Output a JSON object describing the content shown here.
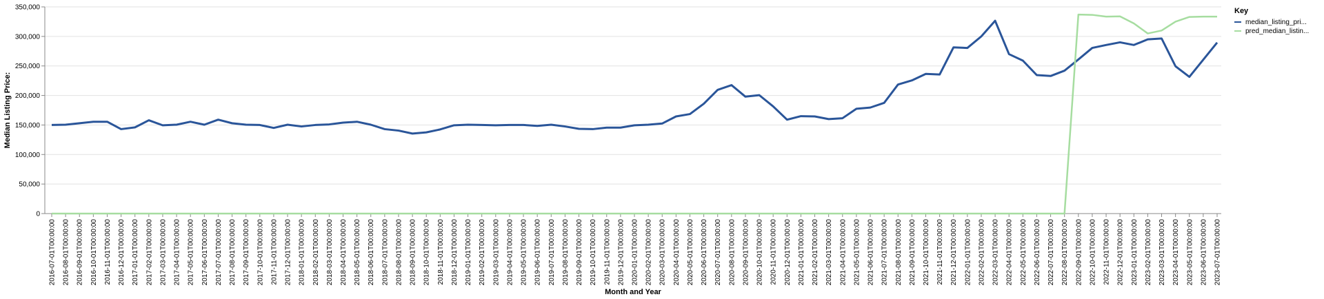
{
  "chart_data": {
    "type": "line",
    "xlabel": "Month and Year",
    "ylabel": "Median Listing Price:",
    "ylim": [
      0,
      350000
    ],
    "yticks": [
      "0",
      "50,000",
      "100,000",
      "150,000",
      "200,000",
      "250,000",
      "300,000",
      "350,000"
    ],
    "grid": true,
    "legend": {
      "title": "Key",
      "placement": "top-right",
      "items": [
        "median_listing_pri...",
        "pred_median_listin..."
      ]
    },
    "x": [
      "2016-07-01T00:00:00",
      "2016-08-01T00:00:00",
      "2016-09-01T00:00:00",
      "2016-10-01T00:00:00",
      "2016-11-01T00:00:00",
      "2016-12-01T00:00:00",
      "2017-01-01T00:00:00",
      "2017-02-01T00:00:00",
      "2017-03-01T00:00:00",
      "2017-04-01T00:00:00",
      "2017-05-01T00:00:00",
      "2017-06-01T00:00:00",
      "2017-07-01T00:00:00",
      "2017-08-01T00:00:00",
      "2017-09-01T00:00:00",
      "2017-10-01T00:00:00",
      "2017-11-01T00:00:00",
      "2017-12-01T00:00:00",
      "2018-01-01T00:00:00",
      "2018-02-01T00:00:00",
      "2018-03-01T00:00:00",
      "2018-04-01T00:00:00",
      "2018-05-01T00:00:00",
      "2018-06-01T00:00:00",
      "2018-07-01T00:00:00",
      "2018-08-01T00:00:00",
      "2018-09-01T00:00:00",
      "2018-10-01T00:00:00",
      "2018-11-01T00:00:00",
      "2018-12-01T00:00:00",
      "2019-01-01T00:00:00",
      "2019-02-01T00:00:00",
      "2019-03-01T00:00:00",
      "2019-04-01T00:00:00",
      "2019-05-01T00:00:00",
      "2019-06-01T00:00:00",
      "2019-07-01T00:00:00",
      "2019-08-01T00:00:00",
      "2019-09-01T00:00:00",
      "2019-10-01T00:00:00",
      "2019-11-01T00:00:00",
      "2019-12-01T00:00:00",
      "2020-01-01T00:00:00",
      "2020-02-01T00:00:00",
      "2020-03-01T00:00:00",
      "2020-04-01T00:00:00",
      "2020-05-01T00:00:00",
      "2020-06-01T00:00:00",
      "2020-07-01T00:00:00",
      "2020-08-01T00:00:00",
      "2020-09-01T00:00:00",
      "2020-10-01T00:00:00",
      "2020-11-01T00:00:00",
      "2020-12-01T00:00:00",
      "2021-01-01T00:00:00",
      "2021-02-01T00:00:00",
      "2021-03-01T00:00:00",
      "2021-04-01T00:00:00",
      "2021-05-01T00:00:00",
      "2021-06-01T00:00:00",
      "2021-07-01T00:00:00",
      "2021-08-01T00:00:00",
      "2021-09-01T00:00:00",
      "2021-10-01T00:00:00",
      "2021-11-01T00:00:00",
      "2021-12-01T00:00:00",
      "2022-01-01T00:00:00",
      "2022-02-01T00:00:00",
      "2022-03-01T00:00:00",
      "2022-04-01T00:00:00",
      "2022-05-01T00:00:00",
      "2022-06-01T00:00:00",
      "2022-07-01T00:00:00",
      "2022-08-01T00:00:00",
      "2022-09-01T00:00:00",
      "2022-10-01T00:00:00",
      "2022-11-01T00:00:00",
      "2022-12-01T00:00:00",
      "2023-01-01T00:00:00",
      "2023-02-01T00:00:00",
      "2023-03-01T00:00:00",
      "2023-04-01T00:00:00",
      "2023-05-01T00:00:00",
      "2023-06-01T00:00:00",
      "2023-07-01T00:00:00"
    ],
    "series": [
      {
        "name": "median_listing_pri...",
        "color": "#2a5599",
        "values": [
          150000,
          150500,
          153000,
          155500,
          155500,
          143000,
          146000,
          158000,
          149500,
          150500,
          155500,
          150500,
          159000,
          153000,
          150500,
          150000,
          145000,
          150500,
          147500,
          150000,
          151000,
          154000,
          155500,
          150500,
          143000,
          140500,
          135500,
          137500,
          142500,
          149500,
          150500,
          150000,
          149500,
          150000,
          150000,
          148500,
          150500,
          147500,
          143500,
          143000,
          145500,
          145500,
          149500,
          150500,
          152500,
          164500,
          168500,
          186000,
          209500,
          217500,
          198000,
          200500,
          181500,
          159000,
          165000,
          164500,
          160000,
          161500,
          177500,
          179500,
          187500,
          218500,
          225500,
          236500,
          235500,
          281500,
          280500,
          300000,
          326500,
          270000,
          259000,
          234500,
          233000,
          242000,
          261000,
          280500,
          285500,
          290000,
          285500,
          295000,
          296500,
          249500,
          231500,
          260500,
          289500
        ]
      },
      {
        "name": "pred_median_listin...",
        "color": "#a6dda0",
        "values": [
          0,
          0,
          0,
          0,
          0,
          0,
          0,
          0,
          0,
          0,
          0,
          0,
          0,
          0,
          0,
          0,
          0,
          0,
          0,
          0,
          0,
          0,
          0,
          0,
          0,
          0,
          0,
          0,
          0,
          0,
          0,
          0,
          0,
          0,
          0,
          0,
          0,
          0,
          0,
          0,
          0,
          0,
          0,
          0,
          0,
          0,
          0,
          0,
          0,
          0,
          0,
          0,
          0,
          0,
          0,
          0,
          0,
          0,
          0,
          0,
          0,
          0,
          0,
          0,
          0,
          0,
          0,
          0,
          0,
          0,
          0,
          0,
          0,
          0,
          337000,
          336500,
          333500,
          334000,
          322000,
          305000,
          310000,
          325000,
          333000,
          333500,
          333500
        ]
      }
    ]
  }
}
